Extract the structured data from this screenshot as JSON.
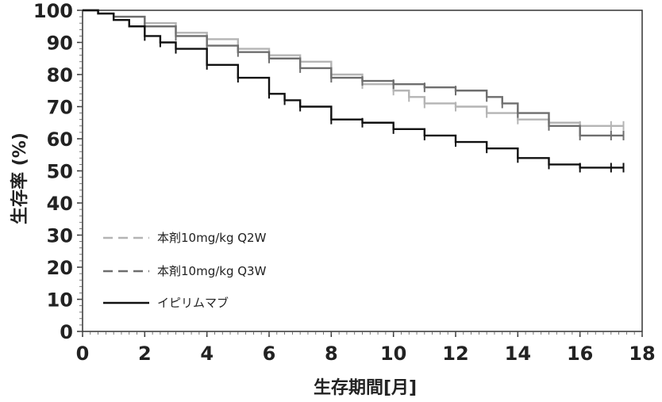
{
  "chart_data": {
    "type": "line",
    "xlabel": "生存期間[月]",
    "ylabel": "生存率 (%)",
    "xlim": [
      0,
      18
    ],
    "ylim": [
      0,
      100
    ],
    "xticks": [
      "0",
      "2",
      "4",
      "6",
      "8",
      "10",
      "12",
      "14",
      "16",
      "18"
    ],
    "yticks": [
      "0",
      "10",
      "20",
      "30",
      "40",
      "50",
      "60",
      "70",
      "80",
      "90",
      "100"
    ],
    "grid": false,
    "legend_position": "bottom-left",
    "series": [
      {
        "name": "本剤10mg/kg Q2W",
        "color": "#b4b4b4",
        "style": "dashed",
        "x": [
          0,
          0.5,
          1,
          2,
          3,
          4,
          5,
          6,
          7,
          8,
          9,
          10,
          10.5,
          11,
          12,
          13,
          14,
          15,
          16,
          17,
          17.4
        ],
        "y": [
          100,
          99,
          98,
          96,
          93,
          91,
          88,
          86,
          84,
          80,
          77,
          75,
          73,
          71,
          70,
          68,
          66,
          65,
          64,
          64,
          64
        ]
      },
      {
        "name": "本剤10mg/kg Q3W",
        "color": "#6e6e6e",
        "style": "dashed",
        "x": [
          0,
          0.5,
          1,
          2,
          3,
          4,
          5,
          6,
          7,
          8,
          9,
          10,
          11,
          12,
          13,
          13.5,
          14,
          15,
          16,
          17,
          17.4
        ],
        "y": [
          100,
          99,
          98,
          95,
          92,
          89,
          87,
          85,
          82,
          79,
          78,
          77,
          76,
          75,
          73,
          71,
          68,
          64,
          61,
          61,
          61
        ]
      },
      {
        "name": "イピリムマブ",
        "color": "#111111",
        "style": "solid",
        "x": [
          0,
          0.5,
          1,
          1.5,
          2,
          2.5,
          3,
          4,
          5,
          6,
          6.5,
          7,
          8,
          9,
          10,
          11,
          12,
          13,
          14,
          15,
          16,
          17,
          17.4
        ],
        "y": [
          100,
          99,
          97,
          95,
          92,
          90,
          88,
          83,
          79,
          74,
          72,
          70,
          66,
          65,
          63,
          61,
          59,
          57,
          54,
          52,
          51,
          51,
          51
        ]
      }
    ]
  }
}
